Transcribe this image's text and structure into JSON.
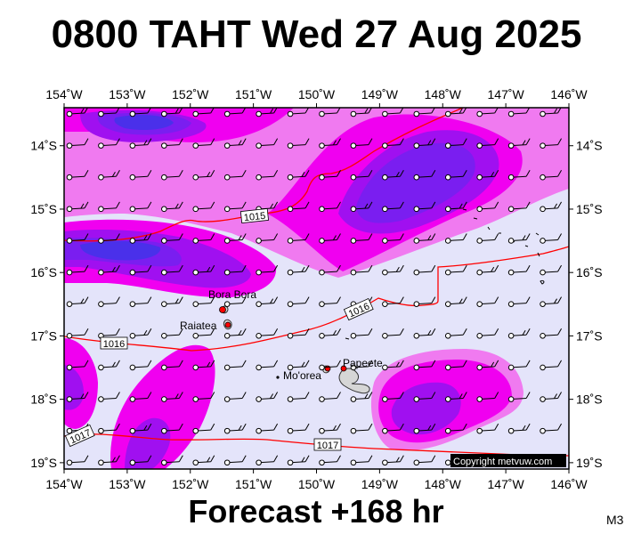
{
  "header": {
    "title": "0800 TAHT Wed 27 Aug 2025"
  },
  "footer": {
    "forecast": "Forecast +168 hr",
    "code": "M3"
  },
  "map": {
    "lon_range": [
      -154,
      -146
    ],
    "lat_range": [
      -19.1,
      -13.4
    ],
    "lon_ticks": [
      {
        "value": -154,
        "label": "154˚W"
      },
      {
        "value": -153,
        "label": "153˚W"
      },
      {
        "value": -152,
        "label": "152˚W"
      },
      {
        "value": -151,
        "label": "151˚W"
      },
      {
        "value": -150,
        "label": "150˚W"
      },
      {
        "value": -149,
        "label": "149˚W"
      },
      {
        "value": -148,
        "label": "148˚W"
      },
      {
        "value": -147,
        "label": "147˚W"
      },
      {
        "value": -146,
        "label": "146˚W"
      }
    ],
    "lat_ticks": [
      {
        "value": -14,
        "label": "14˚S"
      },
      {
        "value": -15,
        "label": "15˚S"
      },
      {
        "value": -16,
        "label": "16˚S"
      },
      {
        "value": -17,
        "label": "17˚S"
      },
      {
        "value": -18,
        "label": "18˚S"
      },
      {
        "value": -19,
        "label": "19˚S"
      }
    ],
    "places": [
      {
        "name": "Bora Bora",
        "lon": -151.75,
        "lat": -16.5
      },
      {
        "name": "Raiatea",
        "lon": -151.45,
        "lat": -16.83
      },
      {
        "name": "Mo'orea",
        "lon": -149.85,
        "lat": -17.53
      },
      {
        "name": "Papeete",
        "lon": -149.57,
        "lat": -17.53
      }
    ],
    "isobars": [
      {
        "label": "1015",
        "value": 1015
      },
      {
        "label": "1016",
        "value": 1016
      },
      {
        "label": "1017",
        "value": 1017
      }
    ],
    "copyright": "Copyright metvuw.com",
    "colors": {
      "background": "#e4e4fa",
      "light": "#f07af0",
      "magenta": "#f000f0",
      "purple": "#a010f0",
      "deep": "#7a1ef0",
      "blue": "#4a30ea",
      "isobar": "#ff0000"
    }
  }
}
